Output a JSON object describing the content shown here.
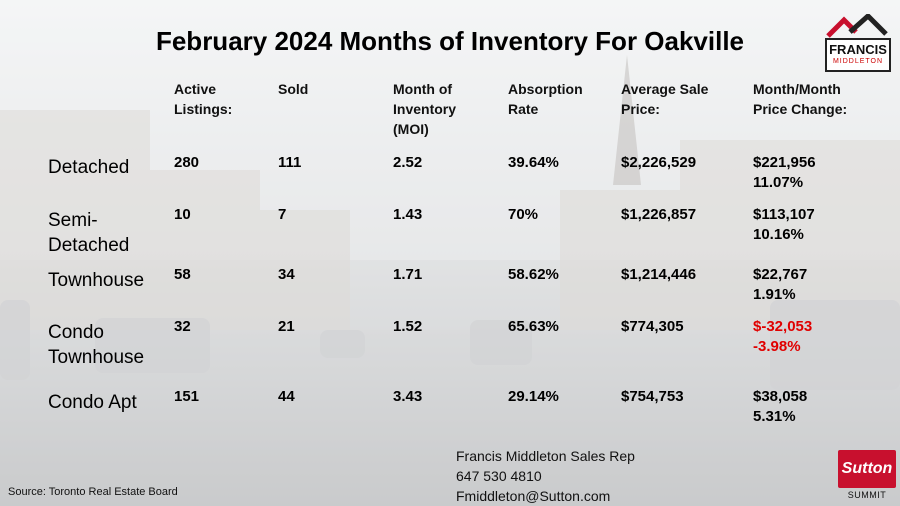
{
  "title": "February 2024 Months of Inventory For Oakville",
  "logo": {
    "name": "FRANCIS",
    "sub": "MIDDLETON"
  },
  "headers": [
    [
      "Active",
      "Listings:"
    ],
    [
      "Sold"
    ],
    [
      "Month of",
      "Inventory",
      "(MOI)"
    ],
    [
      "Absorption",
      "Rate"
    ],
    [
      "Average Sale",
      "Price:"
    ],
    [
      "Month/Month",
      "Price Change:"
    ]
  ],
  "rows": [
    {
      "label": [
        "Detached"
      ],
      "active": "280",
      "sold": "111",
      "moi": "2.52",
      "absorption": "39.64%",
      "avg_price": "$2,226,529",
      "change": [
        "$221,956",
        "11.07%"
      ],
      "negative": false
    },
    {
      "label": [
        "Semi-",
        "Detached"
      ],
      "active": "10",
      "sold": "7",
      "moi": "1.43",
      "absorption": "70%",
      "avg_price": "$1,226,857",
      "change": [
        "$113,107",
        "10.16%"
      ],
      "negative": false
    },
    {
      "label": [
        "Townhouse"
      ],
      "active": "58",
      "sold": "34",
      "moi": "1.71",
      "absorption": "58.62%",
      "avg_price": "$1,214,446",
      "change": [
        "$22,767",
        "1.91%"
      ],
      "negative": false
    },
    {
      "label": [
        "Condo",
        "Townhouse"
      ],
      "active": "32",
      "sold": "21",
      "moi": "1.52",
      "absorption": "65.63%",
      "avg_price": "$774,305",
      "change": [
        "$-32,053",
        "-3.98%"
      ],
      "negative": true
    },
    {
      "label": [
        "Condo Apt"
      ],
      "active": "151",
      "sold": "44",
      "moi": "3.43",
      "absorption": "29.14%",
      "avg_price": "$754,753",
      "change": [
        "$38,058",
        "5.31%"
      ],
      "negative": false
    }
  ],
  "source": "Source: Toronto Real Estate Board",
  "contact": [
    "Francis Middleton Sales Rep",
    "647 530 4810",
    "Fmiddleton@Sutton.com"
  ],
  "brand": {
    "name": "Sutton",
    "sub": "SUMMIT"
  },
  "colors": {
    "negative": "#e00000",
    "brand_red": "#c8102e"
  }
}
